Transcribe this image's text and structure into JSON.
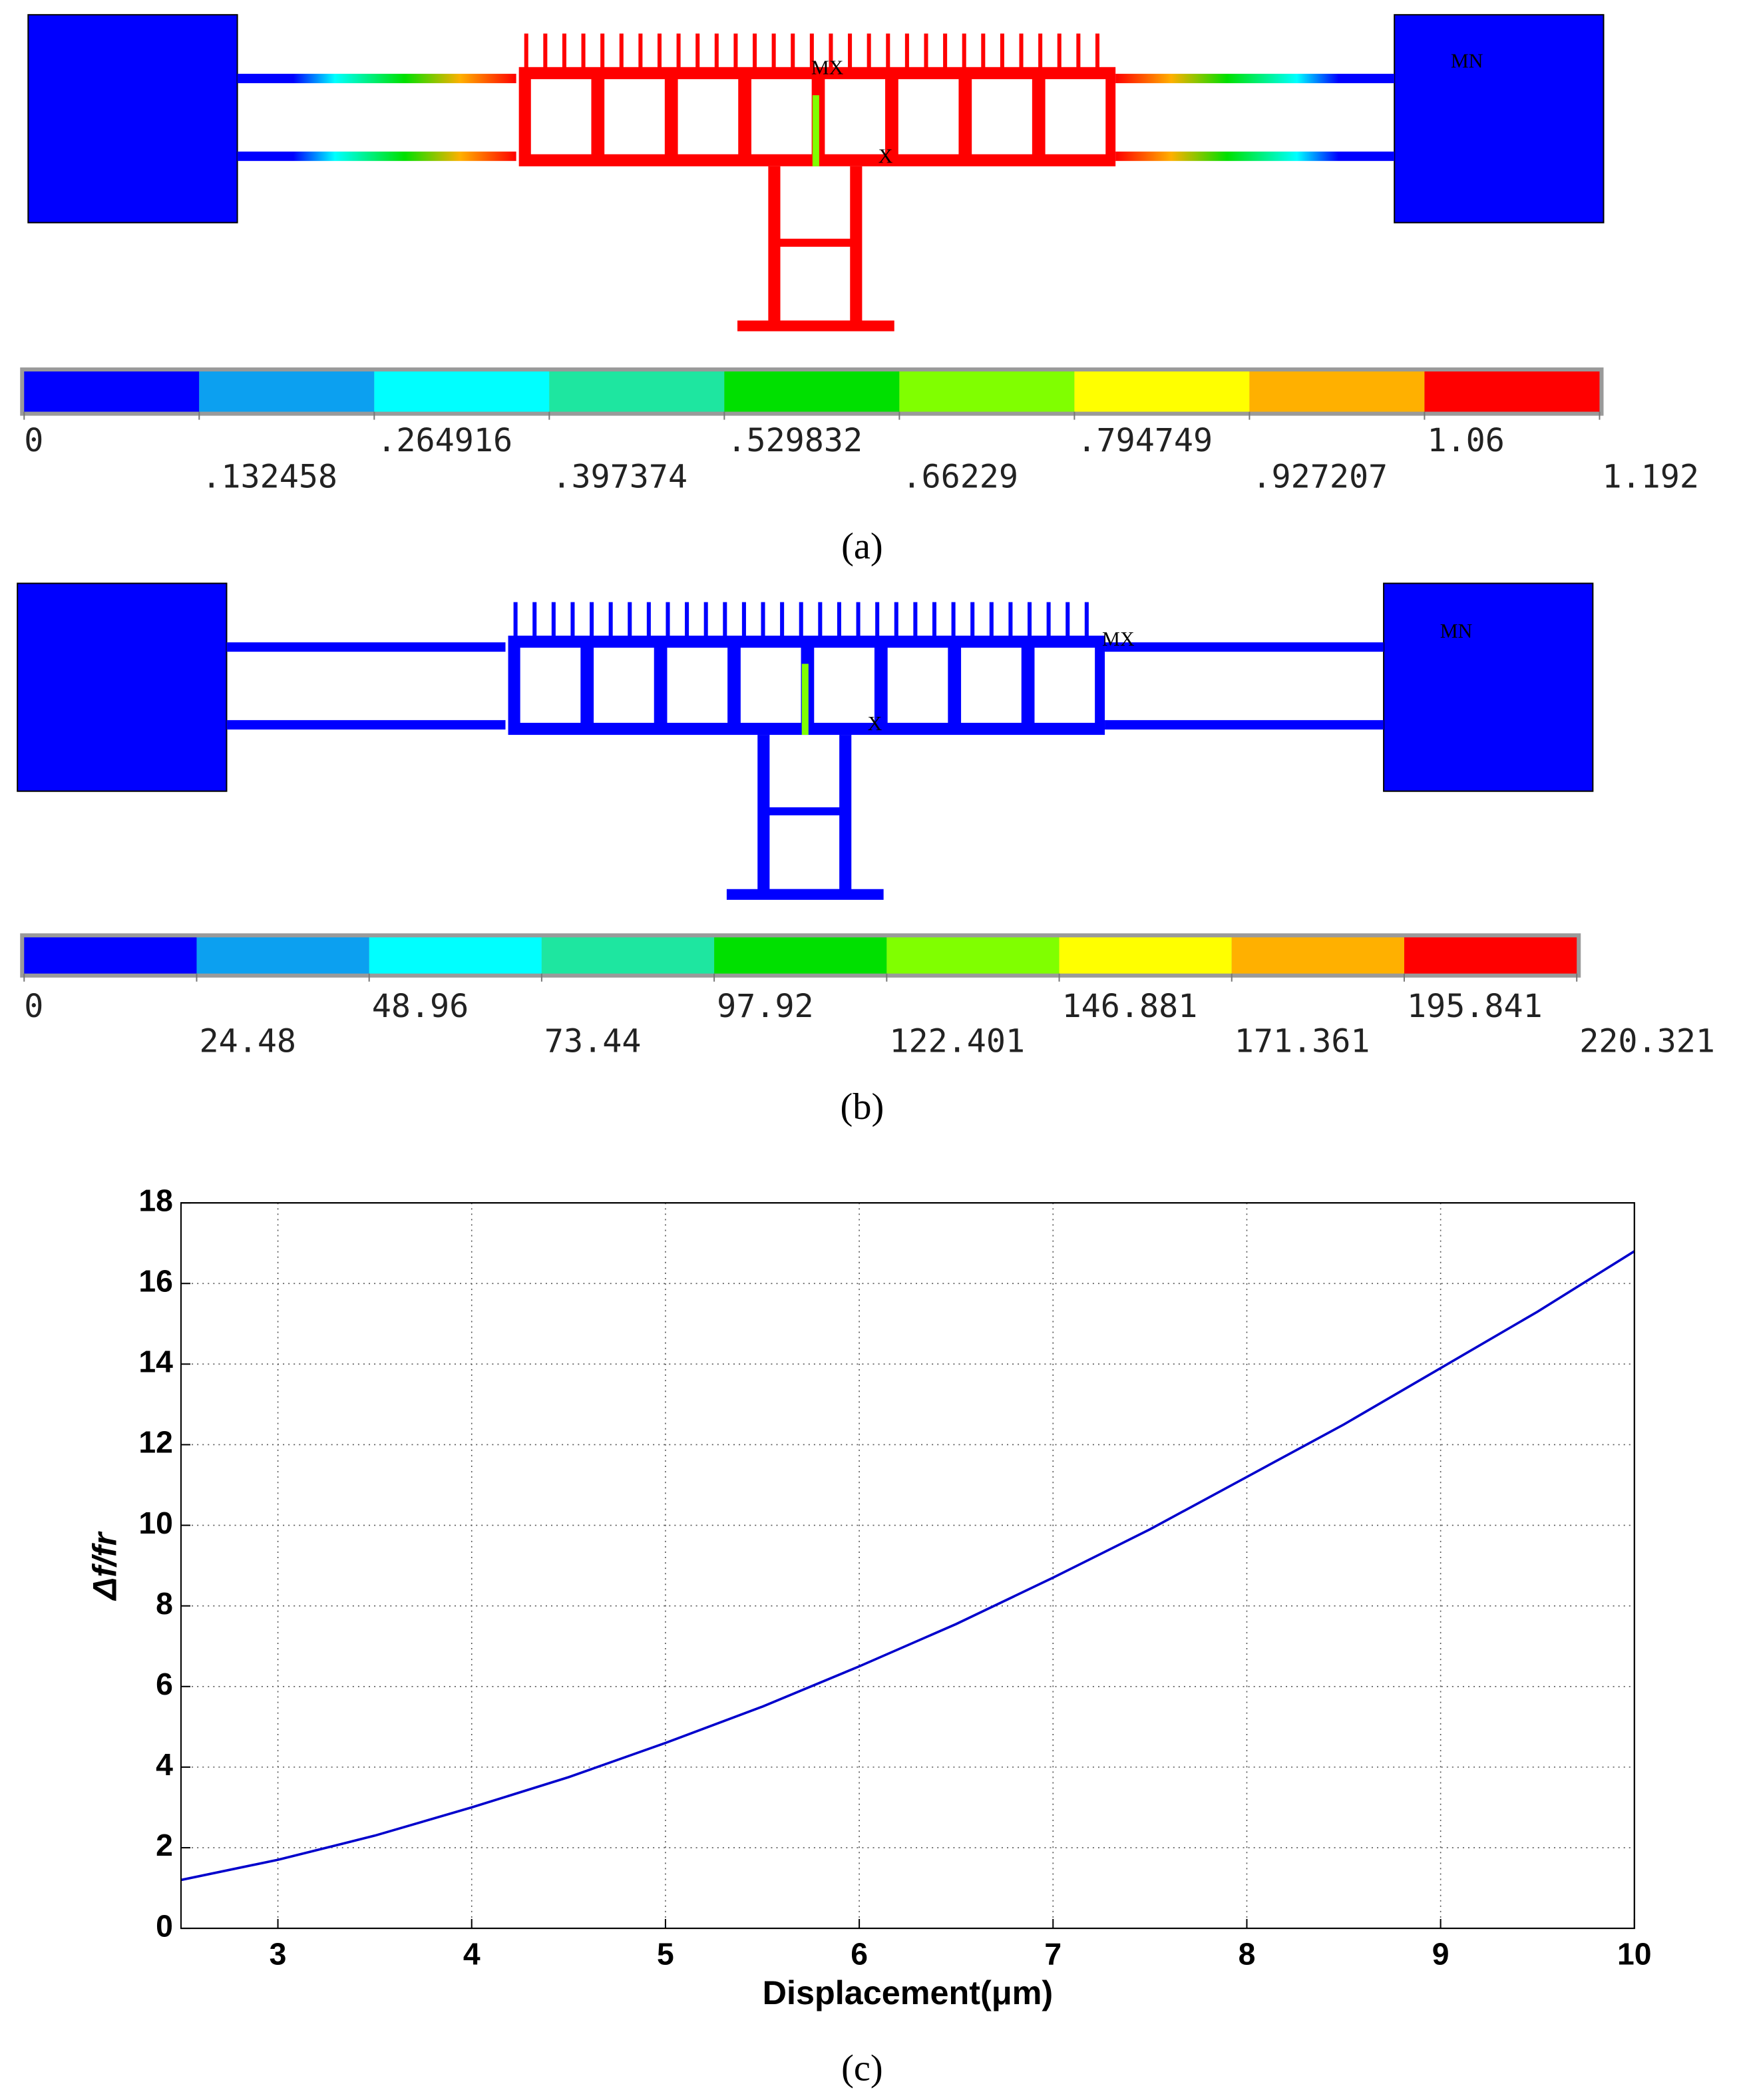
{
  "chart_data": [
    {
      "type": "contour",
      "label": "(a)",
      "annotations": [
        "MX",
        "X",
        "MN"
      ],
      "colors": [
        "#0000ff",
        "#0ca0f0",
        "#00ffff",
        "#1ee6a0",
        "#00e000",
        "#80ff00",
        "#ffff00",
        "#ffb000",
        "#ff0000"
      ],
      "levels": [
        0,
        {
          "value": 0.132458,
          "label": ".132458"
        },
        {
          "value": 0.264916,
          "label": ".264916"
        },
        {
          "value": 0.397374,
          "label": ".397374"
        },
        {
          "value": 0.529832,
          "label": ".529832"
        },
        {
          "value": 0.66229,
          "label": ".66229"
        },
        {
          "value": 0.794749,
          "label": ".794749"
        },
        {
          "value": 0.927207,
          "label": ".927207"
        },
        1.06,
        1.192
      ]
    },
    {
      "type": "contour",
      "label": "(b)",
      "annotations": [
        "MX",
        "X",
        "MN"
      ],
      "colors": [
        "#0000ff",
        "#0ca0f0",
        "#00ffff",
        "#1ee6a0",
        "#00e000",
        "#80ff00",
        "#ffff00",
        "#ffb000",
        "#ff0000"
      ],
      "levels": [
        0,
        24.48,
        48.96,
        73.44,
        97.92,
        122.401,
        146.881,
        171.361,
        195.841,
        220.321
      ]
    },
    {
      "type": "line",
      "label": "(c)",
      "xlabel": "Displacement(μm)",
      "ylabel": "Δf/fr",
      "x": [
        2.5,
        3,
        3.5,
        4,
        4.5,
        5,
        5.5,
        6,
        6.5,
        7,
        7.5,
        8,
        8.5,
        9,
        9.5,
        10
      ],
      "series": [
        {
          "color": "#0000cc",
          "values": [
            1.2,
            1.7,
            2.3,
            3.0,
            3.75,
            4.6,
            5.5,
            6.5,
            7.55,
            8.7,
            9.9,
            11.2,
            12.5,
            13.9,
            15.3,
            16.8
          ]
        }
      ],
      "xlim": [
        2.5,
        10
      ],
      "xticks": [
        3,
        4,
        5,
        6,
        7,
        8,
        9,
        10
      ],
      "ylim": [
        0,
        18
      ],
      "yticks": [
        0,
        2,
        4,
        6,
        8,
        10,
        12,
        14,
        16,
        18
      ],
      "grid": true
    }
  ]
}
